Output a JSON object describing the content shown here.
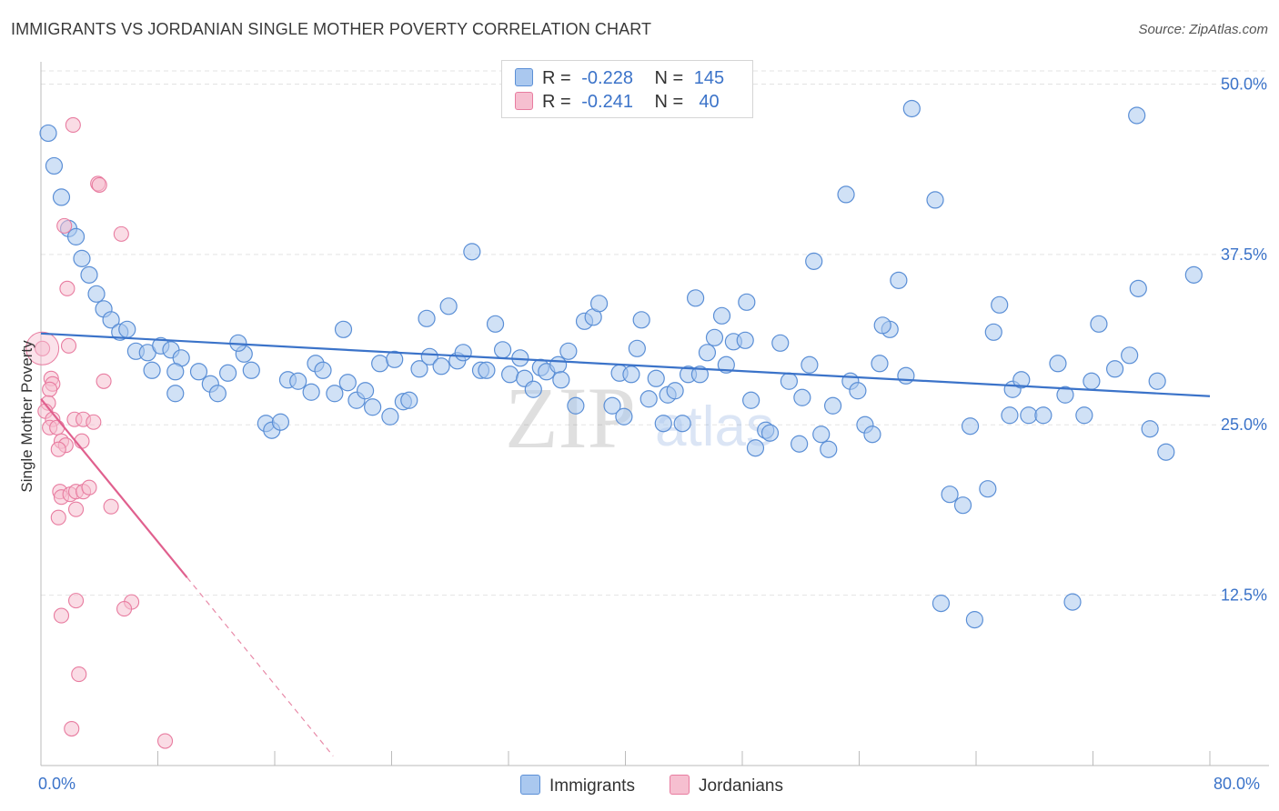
{
  "header": {
    "title": "IMMIGRANTS VS JORDANIAN SINGLE MOTHER POVERTY CORRELATION CHART",
    "source": "Source: ZipAtlas.com"
  },
  "legend": {
    "r_label": "R =",
    "n_label": "N =",
    "rows": [
      {
        "r": "-0.228",
        "n": "145"
      },
      {
        "r": "-0.241",
        "n": " 40"
      }
    ]
  },
  "bottom_legend": {
    "immigrants": "Immigrants",
    "jordanians": "Jordanians"
  },
  "watermark": {
    "zip": "ZIP",
    "atlas": "atlas"
  },
  "chart_data": {
    "type": "scatter",
    "ylabel": "Single Mother Poverty",
    "x_tick_labels": [
      "0.0%",
      "80.0%"
    ],
    "y_tick_labels": [
      "12.5%",
      "25.0%",
      "37.5%",
      "50.0%"
    ],
    "xlim": [
      0,
      80
    ],
    "ylim": [
      0,
      51.5
    ],
    "y_ticks": [
      12.5,
      25,
      37.5,
      50
    ],
    "grid": "horizontal dashed",
    "colors": {
      "immigrants": "#5b8fd6",
      "immigrants_fill": "#aac8ef",
      "jordanians": "#e87ca0",
      "jordanians_fill": "#f6bfd0"
    },
    "series": [
      {
        "name": "Immigrants",
        "trend": {
          "x": [
            0,
            80
          ],
          "y": [
            31.7,
            27.1
          ]
        },
        "points": [
          [
            0.5,
            46.4
          ],
          [
            0.9,
            44.0
          ],
          [
            1.4,
            41.7
          ],
          [
            1.9,
            39.4
          ],
          [
            2.4,
            38.8
          ],
          [
            2.8,
            37.2
          ],
          [
            3.3,
            36.0
          ],
          [
            3.8,
            34.6
          ],
          [
            4.3,
            33.5
          ],
          [
            4.8,
            32.7
          ],
          [
            5.4,
            31.8
          ],
          [
            5.9,
            32.0
          ],
          [
            6.5,
            30.4
          ],
          [
            7.3,
            30.3
          ],
          [
            7.6,
            29.0
          ],
          [
            8.2,
            30.8
          ],
          [
            8.9,
            30.5
          ],
          [
            9.2,
            27.3
          ],
          [
            9.6,
            29.9
          ],
          [
            9.2,
            28.9
          ],
          [
            10.8,
            28.9
          ],
          [
            11.6,
            28.0
          ],
          [
            12.1,
            27.3
          ],
          [
            12.8,
            28.8
          ],
          [
            13.9,
            30.2
          ],
          [
            14.4,
            29.0
          ],
          [
            13.5,
            31.0
          ],
          [
            15.4,
            25.1
          ],
          [
            15.8,
            24.6
          ],
          [
            16.4,
            25.2
          ],
          [
            16.9,
            28.3
          ],
          [
            17.6,
            28.2
          ],
          [
            18.5,
            27.4
          ],
          [
            18.8,
            29.5
          ],
          [
            19.3,
            29.0
          ],
          [
            20.1,
            27.3
          ],
          [
            20.7,
            32.0
          ],
          [
            21.0,
            28.1
          ],
          [
            21.6,
            26.8
          ],
          [
            22.2,
            27.5
          ],
          [
            22.7,
            26.3
          ],
          [
            23.2,
            29.5
          ],
          [
            23.9,
            25.6
          ],
          [
            24.2,
            29.8
          ],
          [
            24.8,
            26.7
          ],
          [
            25.2,
            26.8
          ],
          [
            25.9,
            29.1
          ],
          [
            26.4,
            32.8
          ],
          [
            26.6,
            30.0
          ],
          [
            27.4,
            29.3
          ],
          [
            27.9,
            33.7
          ],
          [
            28.5,
            29.7
          ],
          [
            28.9,
            30.3
          ],
          [
            29.5,
            37.7
          ],
          [
            30.1,
            29.0
          ],
          [
            30.5,
            29.0
          ],
          [
            31.1,
            32.4
          ],
          [
            31.6,
            30.5
          ],
          [
            32.1,
            28.7
          ],
          [
            32.8,
            29.9
          ],
          [
            33.1,
            28.4
          ],
          [
            33.7,
            27.6
          ],
          [
            34.2,
            29.2
          ],
          [
            34.6,
            28.9
          ],
          [
            35.4,
            29.4
          ],
          [
            35.6,
            28.3
          ],
          [
            36.1,
            30.4
          ],
          [
            36.6,
            26.4
          ],
          [
            37.2,
            32.6
          ],
          [
            37.8,
            32.9
          ],
          [
            38.2,
            33.9
          ],
          [
            39.1,
            26.4
          ],
          [
            39.6,
            28.8
          ],
          [
            39.9,
            25.6
          ],
          [
            40.4,
            28.7
          ],
          [
            40.8,
            30.6
          ],
          [
            41.1,
            32.7
          ],
          [
            41.6,
            26.9
          ],
          [
            42.1,
            28.4
          ],
          [
            42.6,
            25.1
          ],
          [
            42.9,
            27.2
          ],
          [
            43.4,
            27.5
          ],
          [
            43.9,
            25.1
          ],
          [
            44.3,
            28.7
          ],
          [
            44.8,
            34.3
          ],
          [
            45.1,
            28.7
          ],
          [
            45.6,
            30.3
          ],
          [
            46.1,
            31.4
          ],
          [
            46.6,
            33.0
          ],
          [
            46.9,
            29.4
          ],
          [
            47.4,
            31.1
          ],
          [
            48.2,
            31.2
          ],
          [
            48.6,
            26.8
          ],
          [
            48.9,
            23.3
          ],
          [
            49.6,
            24.6
          ],
          [
            49.9,
            24.4
          ],
          [
            50.6,
            31.0
          ],
          [
            51.2,
            28.2
          ],
          [
            51.9,
            23.6
          ],
          [
            52.1,
            27.0
          ],
          [
            52.6,
            29.4
          ],
          [
            52.9,
            37.0
          ],
          [
            53.4,
            24.3
          ],
          [
            53.9,
            23.2
          ],
          [
            54.2,
            26.4
          ],
          [
            55.1,
            41.9
          ],
          [
            55.4,
            28.2
          ],
          [
            55.9,
            27.5
          ],
          [
            56.4,
            25.0
          ],
          [
            56.9,
            24.3
          ],
          [
            57.4,
            29.5
          ],
          [
            58.1,
            32.0
          ],
          [
            58.7,
            35.6
          ],
          [
            59.2,
            28.6
          ],
          [
            59.6,
            48.2
          ],
          [
            61.2,
            41.5
          ],
          [
            61.6,
            11.9
          ],
          [
            62.2,
            19.9
          ],
          [
            63.1,
            19.1
          ],
          [
            63.6,
            24.9
          ],
          [
            63.9,
            10.7
          ],
          [
            64.8,
            20.3
          ],
          [
            65.2,
            31.8
          ],
          [
            65.6,
            33.8
          ],
          [
            66.3,
            25.7
          ],
          [
            66.5,
            27.6
          ],
          [
            67.6,
            25.7
          ],
          [
            68.6,
            25.7
          ],
          [
            69.6,
            29.5
          ],
          [
            70.1,
            27.2
          ],
          [
            71.4,
            25.7
          ],
          [
            71.9,
            28.2
          ],
          [
            72.4,
            32.4
          ],
          [
            73.5,
            29.1
          ],
          [
            74.5,
            30.1
          ],
          [
            75.0,
            47.7
          ],
          [
            75.1,
            35.0
          ],
          [
            75.9,
            24.7
          ],
          [
            76.4,
            28.2
          ],
          [
            77.0,
            23.0
          ],
          [
            78.9,
            36.0
          ],
          [
            70.6,
            12.0
          ],
          [
            67.1,
            28.3
          ],
          [
            57.6,
            32.3
          ],
          [
            48.3,
            34.0
          ]
        ]
      },
      {
        "name": "Jordanians",
        "trend": {
          "x": [
            0,
            10
          ],
          "y": [
            26.9,
            13.8
          ]
        },
        "trend_extension": {
          "x": [
            10,
            20
          ],
          "y": [
            13.8,
            0.7
          ]
        },
        "points": [
          [
            2.2,
            47.0
          ],
          [
            3.9,
            42.7
          ],
          [
            4.0,
            42.6
          ],
          [
            1.6,
            39.6
          ],
          [
            5.5,
            39.0
          ],
          [
            1.8,
            35.0
          ],
          [
            1.9,
            30.8
          ],
          [
            0.1,
            30.6
          ],
          [
            0.7,
            28.4
          ],
          [
            0.8,
            28.0
          ],
          [
            4.3,
            28.2
          ],
          [
            0.6,
            27.6
          ],
          [
            0.5,
            26.6
          ],
          [
            0.3,
            26.0
          ],
          [
            0.8,
            25.4
          ],
          [
            2.3,
            25.4
          ],
          [
            2.9,
            25.4
          ],
          [
            3.6,
            25.2
          ],
          [
            0.6,
            24.8
          ],
          [
            1.1,
            24.8
          ],
          [
            1.4,
            23.8
          ],
          [
            1.7,
            23.5
          ],
          [
            2.8,
            23.8
          ],
          [
            1.2,
            23.2
          ],
          [
            1.3,
            20.1
          ],
          [
            1.4,
            19.7
          ],
          [
            2.0,
            19.9
          ],
          [
            2.4,
            20.1
          ],
          [
            2.9,
            20.1
          ],
          [
            3.3,
            20.4
          ],
          [
            2.4,
            18.8
          ],
          [
            4.8,
            19.0
          ],
          [
            1.2,
            18.2
          ],
          [
            2.4,
            12.1
          ],
          [
            6.2,
            12.0
          ],
          [
            5.7,
            11.5
          ],
          [
            1.4,
            11.0
          ],
          [
            2.6,
            6.7
          ],
          [
            2.1,
            2.7
          ],
          [
            8.5,
            1.8
          ]
        ]
      }
    ]
  }
}
